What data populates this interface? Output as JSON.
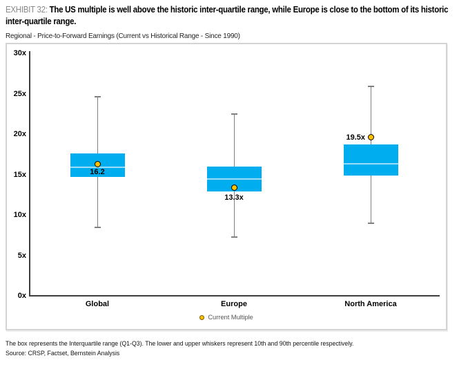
{
  "header": {
    "exhibit_label": "EXHIBIT 32:",
    "title": "The US multiple is well above the historic inter-quartile range, while Europe is close to the bottom of its historic inter-quartile range.",
    "subtitle": "Regional - Price-to-Forward Earnings (Current vs Historical Range - Since 1990)"
  },
  "chart_data": {
    "type": "box",
    "title": "Regional - Price-to-Forward Earnings (Current vs Historical Range - Since 1990)",
    "categories": [
      "Global",
      "Europe",
      "North America"
    ],
    "whisker_definition": "10th and 90th percentile",
    "box_definition": "Interquartile range (Q1-Q3)",
    "series": [
      {
        "name": "Global",
        "p10": 8.4,
        "q1": 14.6,
        "median": 15.8,
        "q3": 17.5,
        "p90": 24.5,
        "current": 16.2,
        "current_label": "16.2",
        "label_position": "below-dot"
      },
      {
        "name": "Europe",
        "p10": 7.2,
        "q1": 12.8,
        "median": 14.4,
        "q3": 15.9,
        "p90": 22.4,
        "current": 13.3,
        "current_label": "13.3x",
        "label_position": "below-box"
      },
      {
        "name": "North America",
        "p10": 8.9,
        "q1": 14.8,
        "median": 16.2,
        "q3": 18.6,
        "p90": 25.8,
        "current": 19.5,
        "current_label": "19.5x",
        "label_position": "left-of-dot"
      }
    ],
    "ylim": [
      0,
      30
    ],
    "yticks": [
      {
        "value": 0,
        "label": "0x"
      },
      {
        "value": 5,
        "label": "5x"
      },
      {
        "value": 10,
        "label": "10x"
      },
      {
        "value": 15,
        "label": "15x"
      },
      {
        "value": 20,
        "label": "20x"
      },
      {
        "value": 25,
        "label": "25x"
      },
      {
        "value": 30,
        "label": "30x"
      }
    ],
    "grid": false,
    "legend": {
      "label": "Current Multiple",
      "position": "bottom-center"
    },
    "colors": {
      "box_fill": "#00AEEF",
      "median_line": "#9bdcf7",
      "current_dot": "#FFC000",
      "dot_border": "#000000",
      "whisker": "#7f7f7f",
      "axis": "#3d3d3d"
    }
  },
  "footer": {
    "note": "The box represents the Interquartile range (Q1-Q3). The lower and upper whiskers represent 10th and 90th percentile respectively.",
    "source": "Source: CRSP, Factset, Bernstein Analysis"
  }
}
